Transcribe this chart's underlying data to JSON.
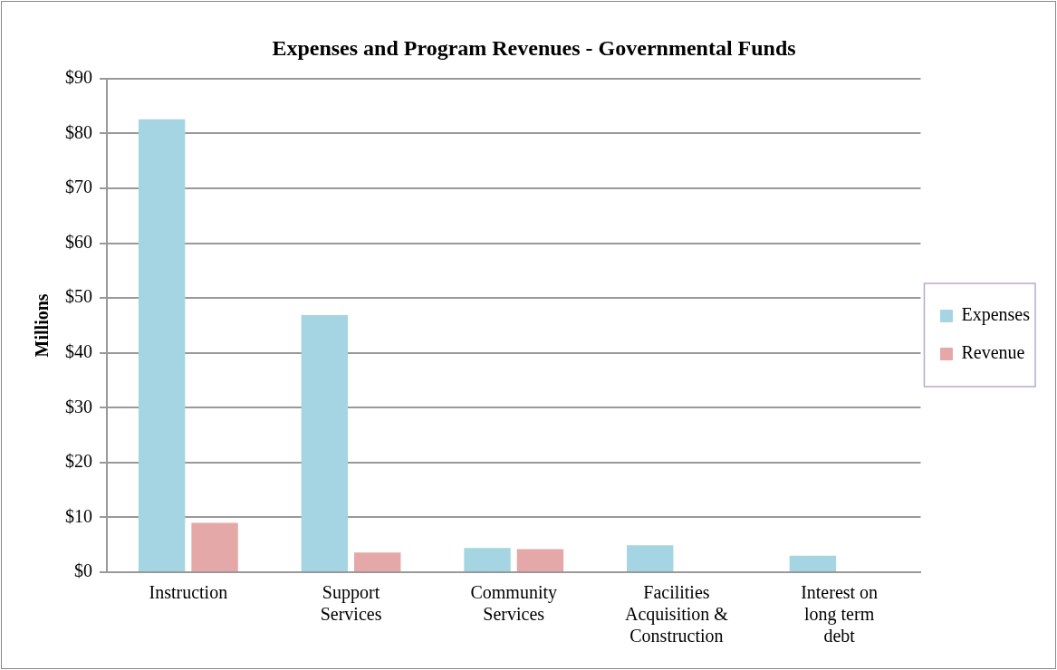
{
  "chart_data": {
    "type": "bar",
    "title": "Expenses and Program Revenues - Governmental Funds",
    "ylabel": "Millions",
    "categories": [
      "Instruction",
      "Support Services",
      "Community Services",
      "Facilities Acquisition & Construction",
      "Interest on long term debt"
    ],
    "series": [
      {
        "name": "Expenses",
        "color": "#a5d5e2",
        "values": [
          82.6,
          46.9,
          4.4,
          4.9,
          3.0
        ]
      },
      {
        "name": "Revenue",
        "color": "#e3a8a7",
        "values": [
          9.0,
          3.6,
          4.2,
          null,
          null
        ]
      }
    ],
    "ylim": [
      0,
      90
    ],
    "yticks": [
      {
        "value": 0,
        "label": "$0"
      },
      {
        "value": 10,
        "label": "$10"
      },
      {
        "value": 20,
        "label": "$20"
      },
      {
        "value": 30,
        "label": "$30"
      },
      {
        "value": 40,
        "label": "$40"
      },
      {
        "value": 50,
        "label": "$50"
      },
      {
        "value": 60,
        "label": "$60"
      },
      {
        "value": 70,
        "label": "$70"
      },
      {
        "value": 80,
        "label": "$80"
      },
      {
        "value": 90,
        "label": "$90"
      }
    ],
    "grid": "y",
    "legend": "right"
  }
}
